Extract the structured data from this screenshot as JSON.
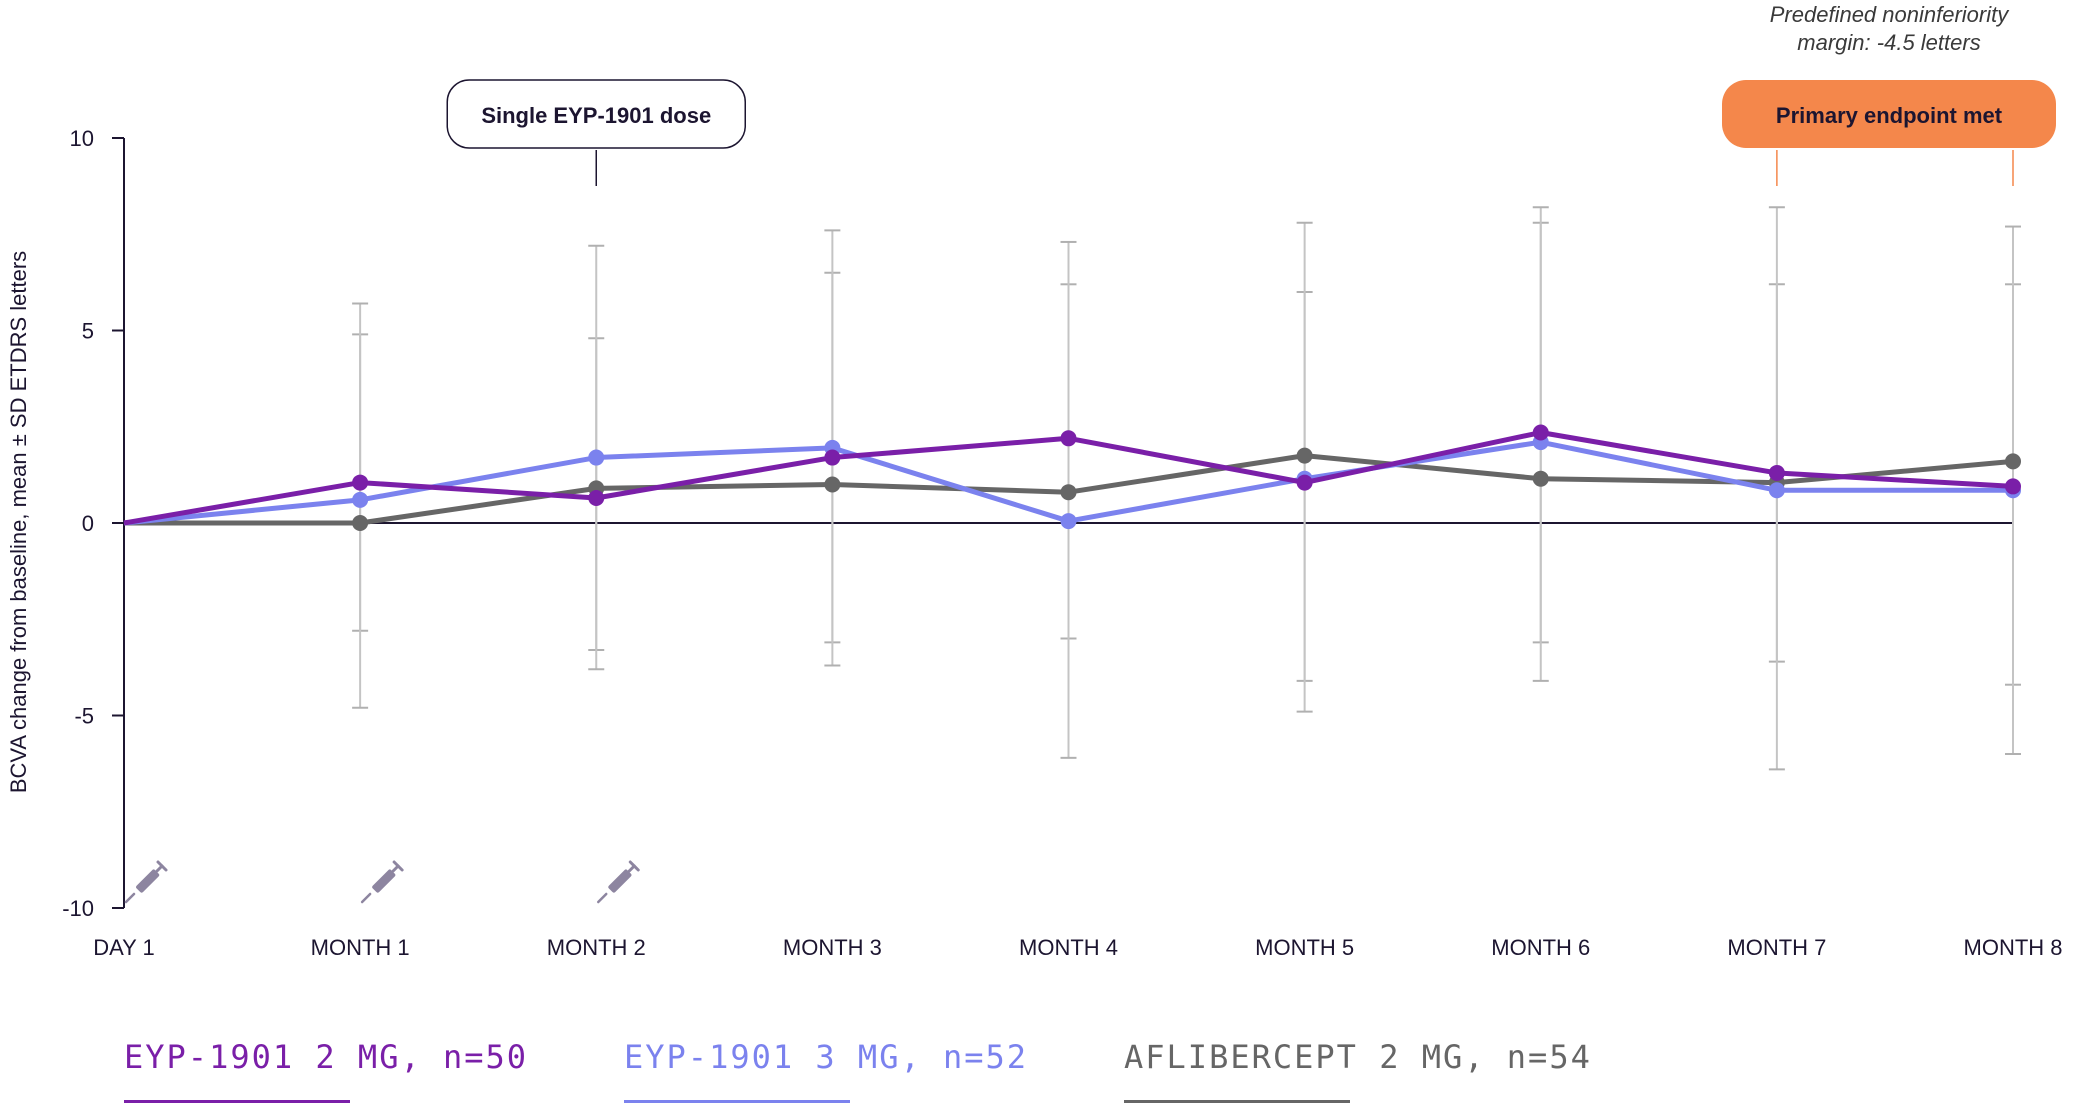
{
  "chart_data": {
    "type": "line",
    "title": "",
    "ylabel": "BCVA change from baseline, mean ± SD ETDRS letters",
    "xlabel": "",
    "ylim": [
      -10,
      10
    ],
    "yticks": [
      10,
      5,
      0,
      -5,
      -10
    ],
    "ytick_labels": [
      "10",
      "5",
      "0",
      "-5",
      "-10"
    ],
    "categories": [
      "DAY 1",
      "MONTH 1",
      "MONTH 2",
      "MONTH 3",
      "MONTH 4",
      "MONTH 5",
      "MONTH 6",
      "MONTH 7",
      "MONTH 8"
    ],
    "series": [
      {
        "name": "AFLIBERCEPT 2 MG, n=54",
        "color": "#666666",
        "values": [
          0,
          0,
          0.9,
          1.0,
          0.8,
          1.75,
          1.15,
          1.05,
          1.6
        ],
        "err_low": [
          null,
          -2.8,
          -3.3,
          -3.1,
          -3.0,
          -4.1,
          -3.1,
          -3.6,
          -4.2
        ],
        "err_high": [
          null,
          4.9,
          4.8,
          6.5,
          6.2,
          6.0,
          7.8,
          6.2,
          6.2
        ]
      },
      {
        "name": "EYP-1901 3 MG, n=52",
        "color": "#7b82ee",
        "values": [
          0,
          0.6,
          1.7,
          1.95,
          0.05,
          1.15,
          2.1,
          0.85,
          0.85
        ],
        "err_low": [
          null,
          -4.8,
          -3.8,
          -3.7,
          -6.1,
          -4.9,
          -4.1,
          -6.4,
          -6.0
        ],
        "err_high": [
          null,
          5.7,
          7.2,
          7.6,
          7.3,
          7.8,
          8.2,
          8.2,
          7.7
        ]
      },
      {
        "name": "EYP-1901 2 MG, n=50",
        "color": "#7a1fa8",
        "values": [
          0,
          1.05,
          0.65,
          1.7,
          2.2,
          1.05,
          2.35,
          1.3,
          0.95
        ]
      }
    ],
    "legend": [
      {
        "label": "EYP-1901 2 MG, n=50",
        "color": "#7a1fa8"
      },
      {
        "label": "EYP-1901 3 MG, n=52",
        "color": "#7b82ee"
      },
      {
        "label": "AFLIBERCEPT 2 MG, n=54",
        "color": "#666666"
      }
    ],
    "legend_position": "bottom",
    "injection_icon": "syringe-icon",
    "injection_at": [
      "DAY 1",
      "MONTH 1",
      "MONTH 2"
    ],
    "annotations": {
      "dose_label": "Single EYP-1901 dose",
      "dose_at": "MONTH 2",
      "endpoint_label": "Primary endpoint met",
      "endpoint_color": "#f4874b",
      "endpoint_span": [
        "MONTH 7",
        "MONTH 8"
      ],
      "margin_note_line1": "Predefined noninferiority",
      "margin_note_line2": "margin: -4.5 letters"
    }
  }
}
